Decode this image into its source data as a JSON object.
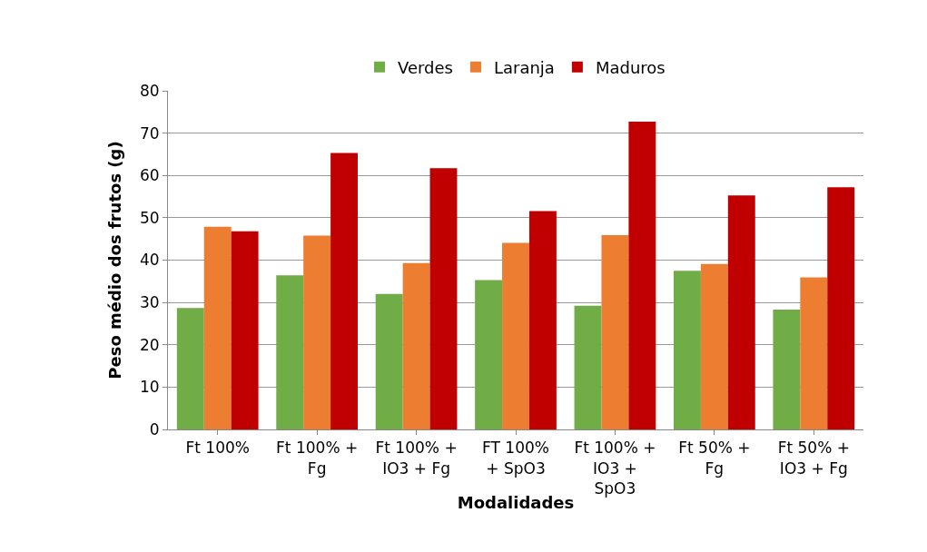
{
  "chart_data": {
    "type": "bar",
    "xlabel": "Modalidades",
    "ylabel": "Peso médio dos frutos (g)",
    "categories": [
      "Ft 100%",
      "Ft 100% +\nFg",
      "Ft 100% +\nIO3 + Fg",
      "FT 100%\n+ SpO3",
      "Ft 100% +\nIO3 +\nSpO3",
      "Ft 50% +\nFg",
      "Ft 50% +\nIO3 + Fg"
    ],
    "series": [
      {
        "name": "Verdes",
        "color": "#70ad47",
        "values": [
          28.7,
          36.4,
          32.0,
          35.3,
          29.2,
          37.5,
          28.3
        ]
      },
      {
        "name": "Laranja",
        "color": "#ed7d31",
        "values": [
          47.9,
          45.8,
          39.3,
          44.1,
          45.9,
          39.1,
          35.9
        ]
      },
      {
        "name": "Maduros",
        "color": "#c00000",
        "values": [
          46.8,
          65.3,
          61.7,
          51.6,
          72.7,
          55.3,
          57.2
        ]
      }
    ],
    "ylim": [
      0,
      80
    ],
    "yticks": [
      0,
      10,
      20,
      30,
      40,
      50,
      60,
      70,
      80
    ],
    "grid": "y",
    "legend": "top"
  }
}
